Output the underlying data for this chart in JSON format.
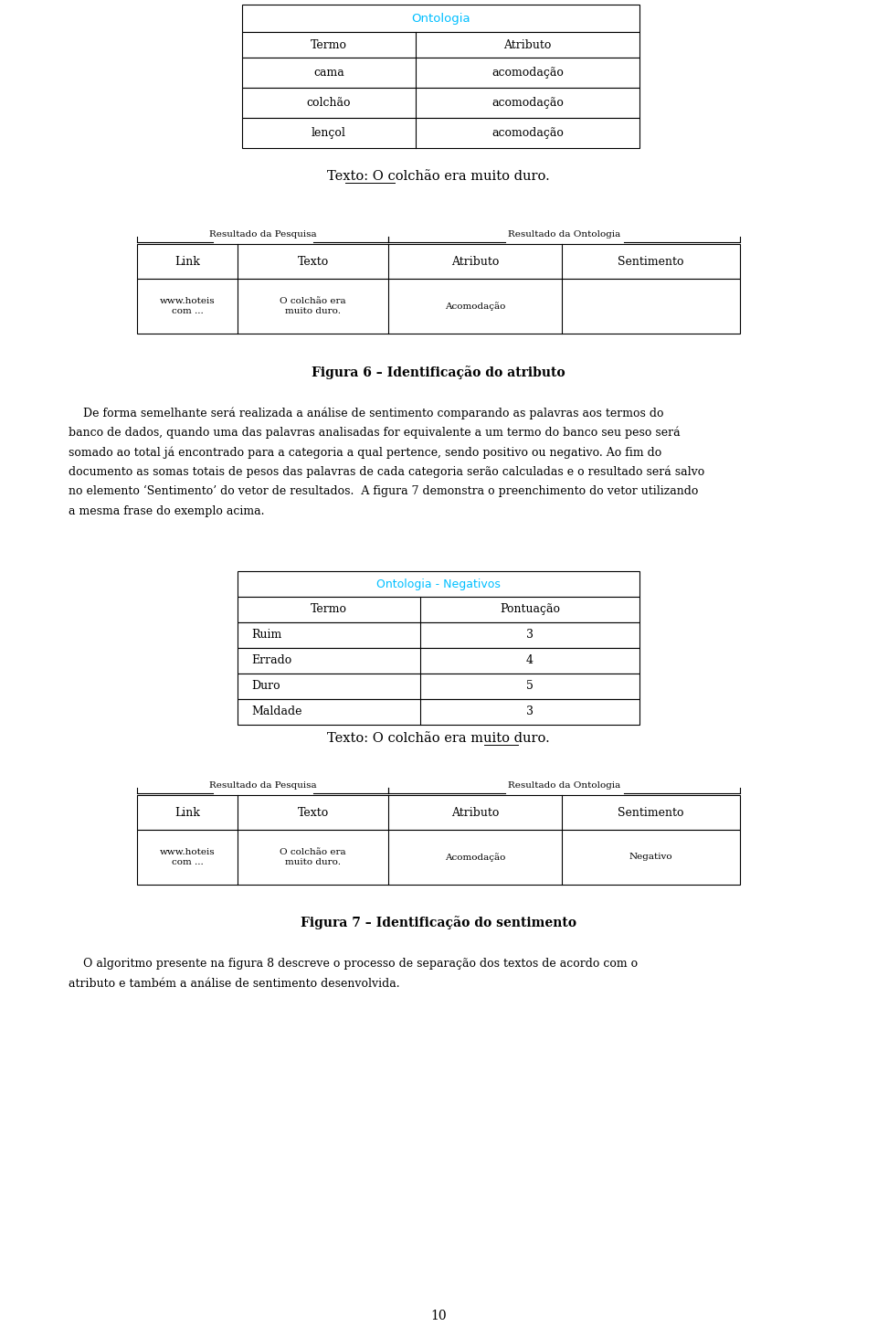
{
  "bg_color": "#ffffff",
  "page_number": "10",
  "table1": {
    "title": "Ontologia",
    "title_color": "#00BFFF",
    "headers": [
      "Termo",
      "Atributo"
    ],
    "rows": [
      [
        "cama",
        "acomodação"
      ],
      [
        "colchão",
        "acomodação"
      ],
      [
        "lençol",
        "acomodação"
      ]
    ]
  },
  "text1": "Texto: O colchão era muito duro.",
  "table2": {
    "group1_label": "Resultado da Pesquisa",
    "group2_label": "Resultado da Ontologia",
    "headers": [
      "Link",
      "Texto",
      "Atributo",
      "Sentimento"
    ],
    "rows": [
      [
        "www.hoteis\ncom ...",
        "O colchão era\nmuito duro.",
        "Acomodação",
        ""
      ]
    ]
  },
  "figure6_caption": "Figura 6 – Identificação do atributo",
  "body_lines": [
    "    De forma semelhante será realizada a análise de sentimento comparando as palavras aos termos do",
    "banco de dados, quando uma das palavras analisadas for equivalente a um termo do banco seu peso será",
    "somado ao total já encontrado para a categoria a qual pertence, sendo positivo ou negativo. Ao fim do",
    "documento as somas totais de pesos das palavras de cada categoria serão calculadas e o resultado será salvo",
    "no elemento ‘Sentimento’ do vetor de resultados.  A figura 7 demonstra o preenchimento do vetor utilizando",
    "a mesma frase do exemplo acima."
  ],
  "table3": {
    "title": "Ontologia - Negativos",
    "title_color": "#00BFFF",
    "headers": [
      "Termo",
      "Pontuação"
    ],
    "rows": [
      [
        "Ruim",
        "3"
      ],
      [
        "Errado",
        "4"
      ],
      [
        "Duro",
        "5"
      ],
      [
        "Maldade",
        "3"
      ]
    ]
  },
  "text2": "Texto: O colchão era muito duro.",
  "table4": {
    "group1_label": "Resultado da Pesquisa",
    "group2_label": "Resultado da Ontologia",
    "headers": [
      "Link",
      "Texto",
      "Atributo",
      "Sentimento"
    ],
    "rows": [
      [
        "www.hoteis\ncom ...",
        "O colchão era\nmuito duro.",
        "Acomodação",
        "Negativo"
      ]
    ]
  },
  "figure7_caption": "Figura 7 – Identificação do sentimento",
  "closing_lines": [
    "    O algoritmo presente na figura 8 descreve o processo de separação dos textos de acordo com o",
    "atributo e também a análise de sentimento desenvolvida."
  ],
  "font_serif": "DejaVu Serif",
  "font_sans": "DejaVu Sans",
  "lw_table": 0.8
}
